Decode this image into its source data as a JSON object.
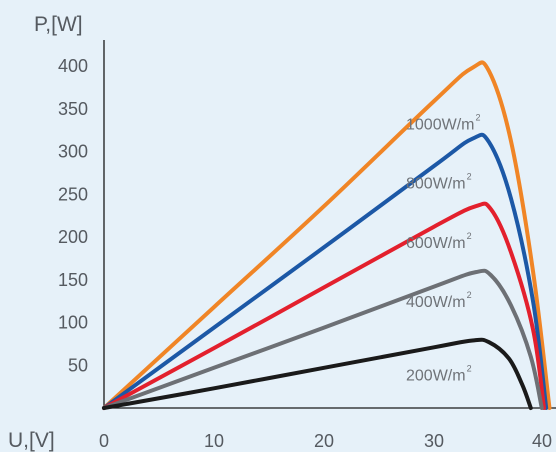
{
  "chart_data": {
    "type": "line",
    "ylabel": "P,[W]",
    "xlabel": "U,[V]",
    "xlim": [
      0,
      40
    ],
    "ylim": [
      0,
      400
    ],
    "x_ticks": [
      "0",
      "10",
      "20",
      "30",
      "40"
    ],
    "y_ticks": [
      "400",
      "350",
      "300",
      "250",
      "200",
      "150",
      "100",
      "50"
    ],
    "grid": false,
    "series": [
      {
        "name": "1000W/m²",
        "label_main": "1000W/m",
        "label_sup": "2",
        "color": "#f08526",
        "points": [
          [
            0,
            0
          ],
          [
            10,
            118
          ],
          [
            20,
            236
          ],
          [
            30,
            359
          ],
          [
            33.5,
            398
          ],
          [
            35,
            394
          ],
          [
            37,
            312
          ],
          [
            39,
            160
          ],
          [
            40.5,
            0
          ]
        ]
      },
      {
        "name": "800W/m²",
        "label_main": "800W/m",
        "label_sup": "2",
        "color": "#1c58a6",
        "points": [
          [
            0,
            0
          ],
          [
            10,
            94
          ],
          [
            20,
            188
          ],
          [
            30,
            283
          ],
          [
            33.5,
            315
          ],
          [
            35,
            311
          ],
          [
            37,
            245
          ],
          [
            39,
            125
          ],
          [
            40.2,
            0
          ]
        ]
      },
      {
        "name": "600W/m²",
        "label_main": "600W/m",
        "label_sup": "2",
        "color": "#e3202d",
        "points": [
          [
            0,
            0
          ],
          [
            10,
            70
          ],
          [
            20,
            141
          ],
          [
            30,
            212
          ],
          [
            33.8,
            236
          ],
          [
            35.2,
            232
          ],
          [
            37,
            182
          ],
          [
            39,
            92
          ],
          [
            40,
            0
          ]
        ]
      },
      {
        "name": "400W/m²",
        "label_main": "400W/m",
        "label_sup": "2",
        "color": "#6d7075",
        "points": [
          [
            0,
            0
          ],
          [
            10,
            47
          ],
          [
            20,
            94
          ],
          [
            30,
            142
          ],
          [
            33.8,
            159
          ],
          [
            35.2,
            155
          ],
          [
            37,
            120
          ],
          [
            38.8,
            60
          ],
          [
            39.8,
            0
          ]
        ]
      },
      {
        "name": "200W/m²",
        "label_main": "200W/m",
        "label_sup": "2",
        "color": "#1a1a1a",
        "points": [
          [
            0,
            0
          ],
          [
            10,
            23
          ],
          [
            20,
            47
          ],
          [
            30,
            71
          ],
          [
            33.5,
            79
          ],
          [
            35,
            77
          ],
          [
            36.8,
            58
          ],
          [
            38,
            28
          ],
          [
            38.8,
            0
          ]
        ]
      }
    ]
  }
}
